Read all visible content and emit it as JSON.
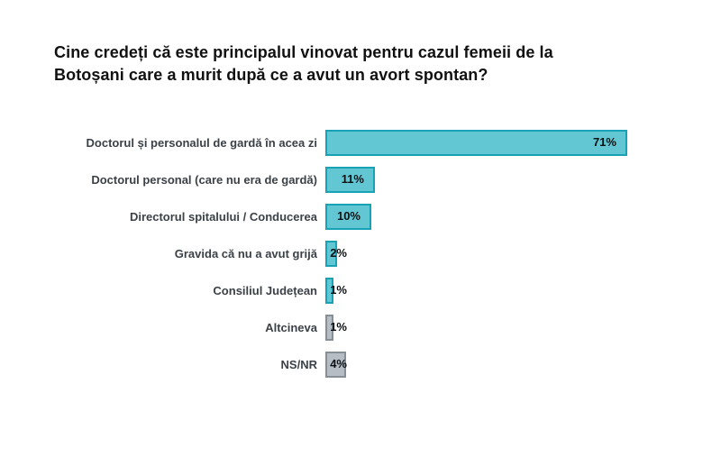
{
  "header": {
    "line1": "Cine credeți că este principalul vinovat pentru cazul femeii de la",
    "line2": "Botoșani care a murit după ce a avut un avort spontan?"
  },
  "chart_data": {
    "type": "bar",
    "orientation": "horizontal",
    "title": "Cine credeți că este principalul vinovat pentru cazul femeii de la Botoșani care a murit după ce a avut un avort spontan?",
    "categories": [
      "Doctorul și personalul de gardă în acea zi",
      "Doctorul personal (care nu era de gardă)",
      "Directorul spitalului / Conducerea",
      "Gravida că nu a avut grijă",
      "Consiliul Județean",
      "Altcineva",
      "NS/NR"
    ],
    "values": [
      71,
      11,
      10,
      2,
      1,
      1,
      4
    ],
    "value_labels": [
      "71%",
      "11%",
      "10%",
      "2%",
      "1%",
      "1%",
      "4%"
    ],
    "bar_schemes": [
      "teal",
      "teal",
      "teal",
      "teal",
      "teal",
      "gray",
      "gray"
    ],
    "xlim": [
      0,
      75
    ],
    "grid": false,
    "legend": false,
    "colors": {
      "teal_fill": "#63c7d3",
      "teal_border": "#17a2b5",
      "gray_fill": "#b6bdc4",
      "gray_border": "#868e96",
      "label_text": "#3b4147",
      "value_text": "#0c1013",
      "title_text": "#111111",
      "background": "#ffffff"
    }
  }
}
